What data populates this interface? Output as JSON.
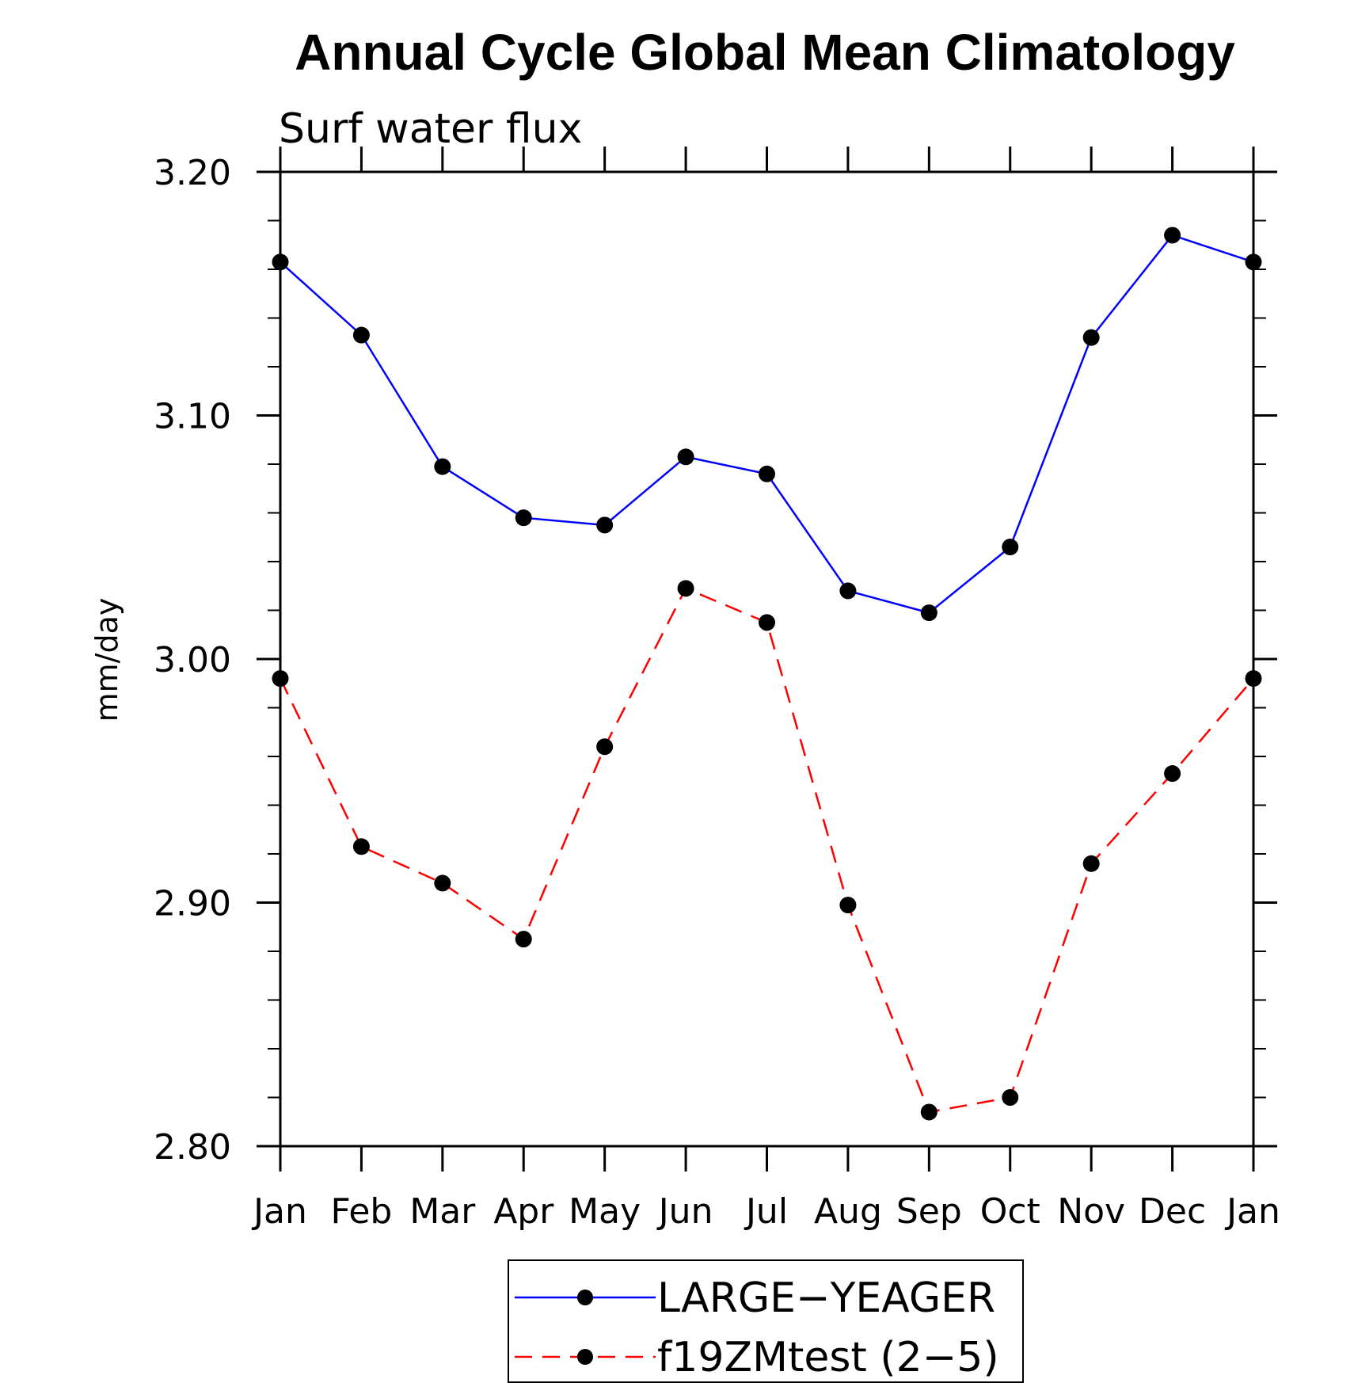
{
  "chart_data": {
    "type": "line",
    "title": "Annual Cycle Global Mean Climatology",
    "subtitle": "Surf water flux",
    "xlabel": "",
    "ylabel": "mm/day",
    "ylim": [
      2.8,
      3.2
    ],
    "y_ticks": [
      "2.80",
      "2.90",
      "3.00",
      "3.10",
      "3.20"
    ],
    "categories": [
      "Jan",
      "Feb",
      "Mar",
      "Apr",
      "May",
      "Jun",
      "Jul",
      "Aug",
      "Sep",
      "Oct",
      "Nov",
      "Dec",
      "Jan"
    ],
    "series": [
      {
        "name": "LARGE−YEAGER",
        "color": "#0000ff",
        "style": "solid",
        "values": [
          3.163,
          3.133,
          3.079,
          3.058,
          3.055,
          3.083,
          3.076,
          3.028,
          3.019,
          3.046,
          3.132,
          3.174,
          3.163
        ]
      },
      {
        "name": "f19ZMtest (2−5)",
        "color": "#ff0000",
        "style": "dashed",
        "values": [
          2.992,
          2.923,
          2.908,
          2.885,
          2.964,
          3.029,
          3.015,
          2.899,
          2.814,
          2.82,
          2.916,
          2.953,
          2.992
        ]
      }
    ],
    "legend_position": "bottom-center",
    "marker": "filled-circle",
    "marker_color": "#000000",
    "grid": false
  }
}
